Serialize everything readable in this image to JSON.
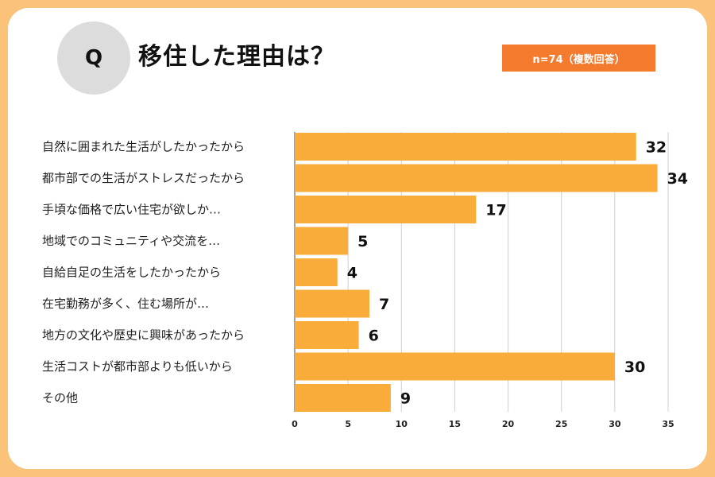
{
  "question": {
    "badge": "Q",
    "title": "移住した理由は？",
    "sample_note": "n=74（複数回答）"
  },
  "colors": {
    "bar": "#f9ac3a",
    "badge_bg": "#dcdcdc",
    "note_bg": "#f47a2e",
    "frame": "#fbc27a"
  },
  "chart_data": {
    "type": "bar",
    "orientation": "horizontal",
    "title": "移住した理由は？",
    "categories": [
      "自然に囲まれた生活がしたかったから",
      "都市部での生活がストレスだったから",
      "手頃な価格で広い住宅が欲しか…",
      "地域でのコミュニティや交流を…",
      "自給自足の生活をしたかったから",
      "在宅勤務が多く、住む場所が…",
      "地方の文化や歴史に興味があったから",
      "生活コストが都市部よりも低いから",
      "その他"
    ],
    "values": [
      32,
      34,
      17,
      5,
      4,
      7,
      6,
      30,
      9
    ],
    "xlim": [
      0,
      35
    ],
    "xticks": [
      0,
      5,
      10,
      15,
      20,
      25,
      30,
      35
    ],
    "xlabel": "",
    "ylabel": "",
    "grid": true
  }
}
